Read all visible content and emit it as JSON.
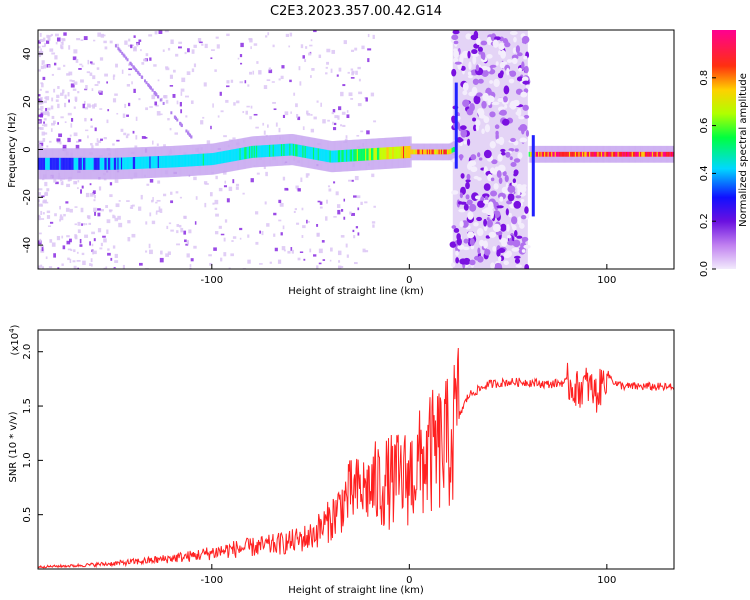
{
  "title": "C2E3.2023.357.00.42.G14",
  "chart_data": [
    {
      "type": "heatmap",
      "xlabel": "Height of straight line (km)",
      "ylabel": "Frequency (Hz)",
      "xlim": [
        -188,
        134
      ],
      "ylim": [
        -50,
        50
      ],
      "xticks": [
        -100,
        0,
        100
      ],
      "yticks": [
        -40,
        -20,
        0,
        20,
        40
      ],
      "colorbar": {
        "label": "Normalized spectral amplitude",
        "range": [
          0,
          1
        ],
        "ticks": [
          0.0,
          0.2,
          0.4,
          0.6,
          0.8
        ],
        "colormap": [
          "#e8d8f8",
          "#8a2be2",
          "#2020ff",
          "#00e5ff",
          "#00ff60",
          "#c8ff00",
          "#ffcc00",
          "#ff2020",
          "#ff0080"
        ]
      },
      "signal_track": {
        "x": [
          -188,
          -150,
          -120,
          -100,
          -80,
          -60,
          -40,
          -20,
          0,
          20,
          22,
          60,
          62,
          100,
          134
        ],
        "center_frequency": [
          -6,
          -6,
          -5,
          -4,
          -1,
          0,
          -3,
          -2,
          -1,
          -1,
          0,
          -2,
          -2,
          -2,
          -2
        ],
        "peak_amplitude": [
          0.3,
          0.35,
          0.4,
          0.4,
          0.45,
          0.45,
          0.4,
          0.6,
          0.8,
          0.8,
          0.5,
          0.4,
          0.9,
          0.95,
          0.95
        ]
      },
      "noise_bands": [
        [
          22,
          60
        ]
      ]
    },
    {
      "type": "line",
      "xlabel": "Height of straight line (km)",
      "ylabel": "SNR (10 * v/v)",
      "yscale_label": "(x10",
      "yscale_exponent": "4",
      "xlim": [
        -188,
        134
      ],
      "ylim": [
        0,
        2.2
      ],
      "xticks": [
        -100,
        0,
        100
      ],
      "yticks": [
        0.5,
        1.0,
        1.5,
        2.0
      ],
      "series": [
        {
          "color": "#ff2020",
          "x": [
            -188,
            -170,
            -150,
            -130,
            -110,
            -100,
            -90,
            -80,
            -70,
            -60,
            -50,
            -40,
            -30,
            -20,
            -10,
            0,
            10,
            20,
            25,
            30,
            40,
            50,
            60,
            70,
            80,
            85,
            90,
            95,
            100,
            105,
            110,
            120,
            134
          ],
          "y": [
            0.02,
            0.03,
            0.05,
            0.08,
            0.12,
            0.15,
            0.18,
            0.2,
            0.22,
            0.25,
            0.3,
            0.45,
            0.7,
            0.75,
            0.8,
            0.85,
            1.05,
            1.15,
            1.4,
            1.6,
            1.7,
            1.72,
            1.72,
            1.7,
            1.72,
            1.65,
            1.7,
            1.6,
            1.8,
            1.7,
            1.68,
            1.68,
            1.67
          ]
        }
      ]
    }
  ]
}
